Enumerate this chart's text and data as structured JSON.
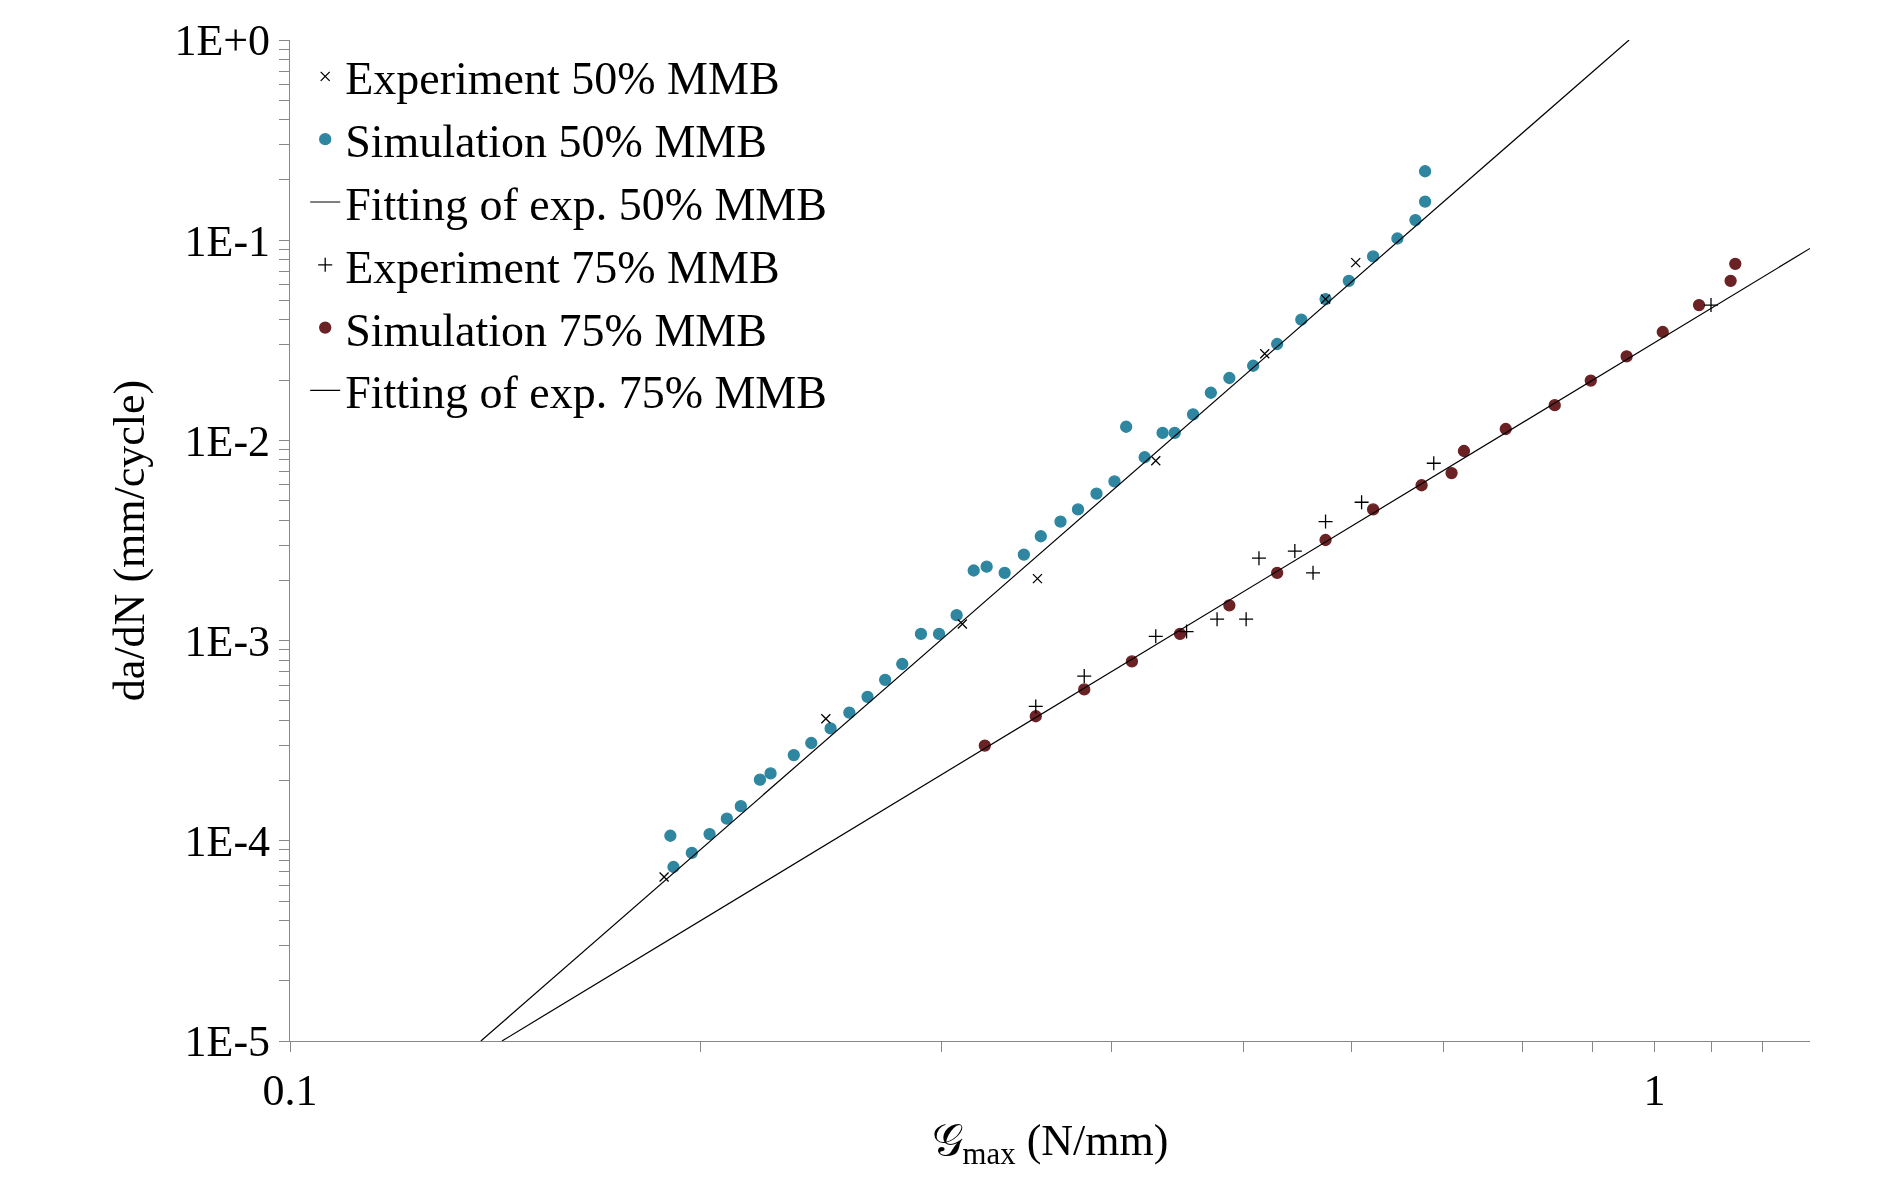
{
  "chart_data": {
    "type": "scatter",
    "xlabel": "𝒢$_{max}$ (N/mm)",
    "ylabel": "da/dN (mm/cycle)",
    "log": "xy",
    "legend": "top left",
    "xlim": [
      0.1,
      1.3
    ],
    "ylim": [
      1e-05,
      1
    ],
    "xticks": [
      {
        "value": 0.1,
        "label": "0.1"
      },
      {
        "value": 0.2,
        "label": null
      },
      {
        "value": 0.3,
        "label": null
      },
      {
        "value": 0.4,
        "label": null
      },
      {
        "value": 0.5,
        "label": null
      },
      {
        "value": 0.6,
        "label": null
      },
      {
        "value": 0.7,
        "label": null
      },
      {
        "value": 0.8,
        "label": null
      },
      {
        "value": 0.9,
        "label": null
      },
      {
        "value": 1,
        "label": "1"
      },
      {
        "value": 1.1,
        "label": null
      },
      {
        "value": 1.2,
        "label": null
      }
    ],
    "yticks": [
      {
        "value": 1e-05,
        "label": "1E-5"
      },
      {
        "value": 2e-05,
        "label": null
      },
      {
        "value": 3e-05,
        "label": null
      },
      {
        "value": 4e-05,
        "label": null
      },
      {
        "value": 5e-05,
        "label": null
      },
      {
        "value": 6e-05,
        "label": null
      },
      {
        "value": 7e-05,
        "label": null
      },
      {
        "value": 8e-05,
        "label": null
      },
      {
        "value": 9e-05,
        "label": null
      },
      {
        "value": 0.0001,
        "label": "1E-4"
      },
      {
        "value": 0.0002,
        "label": null
      },
      {
        "value": 0.0003,
        "label": null
      },
      {
        "value": 0.0004,
        "label": null
      },
      {
        "value": 0.0005,
        "label": null
      },
      {
        "value": 0.0006,
        "label": null
      },
      {
        "value": 0.0007,
        "label": null
      },
      {
        "value": 0.0008,
        "label": null
      },
      {
        "value": 0.0009,
        "label": null
      },
      {
        "value": 0.001,
        "label": "1E-3"
      },
      {
        "value": 0.002,
        "label": null
      },
      {
        "value": 0.003,
        "label": null
      },
      {
        "value": 0.004,
        "label": null
      },
      {
        "value": 0.005,
        "label": null
      },
      {
        "value": 0.006,
        "label": null
      },
      {
        "value": 0.007,
        "label": null
      },
      {
        "value": 0.008,
        "label": null
      },
      {
        "value": 0.009,
        "label": null
      },
      {
        "value": 0.01,
        "label": "1E-2"
      },
      {
        "value": 0.02,
        "label": null
      },
      {
        "value": 0.03,
        "label": null
      },
      {
        "value": 0.04,
        "label": null
      },
      {
        "value": 0.05,
        "label": null
      },
      {
        "value": 0.06,
        "label": null
      },
      {
        "value": 0.07,
        "label": null
      },
      {
        "value": 0.08,
        "label": null
      },
      {
        "value": 0.09,
        "label": null
      },
      {
        "value": 0.1,
        "label": "1E-1"
      },
      {
        "value": 0.2,
        "label": null
      },
      {
        "value": 0.3,
        "label": null
      },
      {
        "value": 0.4,
        "label": null
      },
      {
        "value": 0.5,
        "label": null
      },
      {
        "value": 0.6,
        "label": null
      },
      {
        "value": 0.7,
        "label": null
      },
      {
        "value": 0.8,
        "label": null
      },
      {
        "value": 0.9,
        "label": null
      },
      {
        "value": 1,
        "label": "1E+0"
      }
    ],
    "series": [
      {
        "name": "Experiment 50% MMB",
        "marker": "x",
        "color": "#000000",
        "x": [
          0.188,
          0.247,
          0.311,
          0.353,
          0.431,
          0.518,
          0.574,
          0.604
        ],
        "values": [
          6.6e-05,
          0.000407,
          0.00121,
          0.00204,
          0.00791,
          0.0271,
          0.0508,
          0.0773
        ]
      },
      {
        "name": "Simulation 50% MMB",
        "marker": "circle",
        "color": "#2e86a0",
        "x": [
          0.19,
          0.191,
          0.197,
          0.203,
          0.209,
          0.214,
          0.221,
          0.225,
          0.234,
          0.241,
          0.249,
          0.257,
          0.265,
          0.273,
          0.281,
          0.29,
          0.299,
          0.308,
          0.317,
          0.324,
          0.334,
          0.345,
          0.355,
          0.367,
          0.378,
          0.39,
          0.402,
          0.41,
          0.423,
          0.436,
          0.445,
          0.459,
          0.473,
          0.488,
          0.508,
          0.529,
          0.551,
          0.574,
          0.597,
          0.622,
          0.648,
          0.668,
          0.679,
          0.679
        ],
        "values": [
          0.000106,
          7.4e-05,
          8.7e-05,
          0.000108,
          0.000129,
          0.000149,
          0.000202,
          0.000217,
          0.000268,
          0.000308,
          0.000364,
          0.000437,
          0.000524,
          0.000637,
          0.000764,
          0.00108,
          0.00108,
          0.00134,
          0.00224,
          0.00234,
          0.00218,
          0.00269,
          0.00332,
          0.00393,
          0.00452,
          0.00542,
          0.00624,
          0.0117,
          0.00824,
          0.0109,
          0.0109,
          0.0135,
          0.0173,
          0.0205,
          0.0236,
          0.0303,
          0.0401,
          0.0508,
          0.0627,
          0.083,
          0.102,
          0.126,
          0.156,
          0.221
        ]
      },
      {
        "name": "Fitting of exp. 50% MMB",
        "type": "line",
        "marker": "none",
        "color": "#000000",
        "x": [
          0.138,
          0.958
        ],
        "values": [
          1e-05,
          1
        ]
      },
      {
        "name": "Experiment 75% MMB",
        "marker": "cross",
        "color": "#000000",
        "x": [
          0.352,
          0.382,
          0.431,
          0.454,
          0.478,
          0.502,
          0.513,
          0.545,
          0.562,
          0.574,
          0.61,
          0.689,
          1.1
        ],
        "values": [
          0.000469,
          0.000665,
          0.00105,
          0.00111,
          0.00128,
          0.00128,
          0.00258,
          0.0028,
          0.00218,
          0.00393,
          0.00491,
          0.00769,
          0.0474
        ]
      },
      {
        "name": "Simulation 75% MMB",
        "marker": "circle",
        "color": "#6b2224",
        "x": [
          0.323,
          0.352,
          0.382,
          0.414,
          0.449,
          0.488,
          0.529,
          0.574,
          0.622,
          0.675,
          0.71,
          0.725,
          0.778,
          0.845,
          0.898,
          0.954,
          1.014,
          1.078,
          1.137,
          1.146
        ],
        "values": [
          0.000299,
          0.000419,
          0.00057,
          0.000787,
          0.00108,
          0.0015,
          0.00218,
          0.00318,
          0.00452,
          0.00597,
          0.00687,
          0.00885,
          0.0114,
          0.015,
          0.0199,
          0.0263,
          0.0348,
          0.0474,
          0.0627,
          0.0762
        ]
      },
      {
        "name": "Fitting of exp. 75% MMB",
        "type": "line",
        "marker": "none",
        "color": "#000000",
        "x": [
          0.143,
          1.3
        ],
        "values": [
          1e-05,
          0.091
        ]
      }
    ]
  }
}
